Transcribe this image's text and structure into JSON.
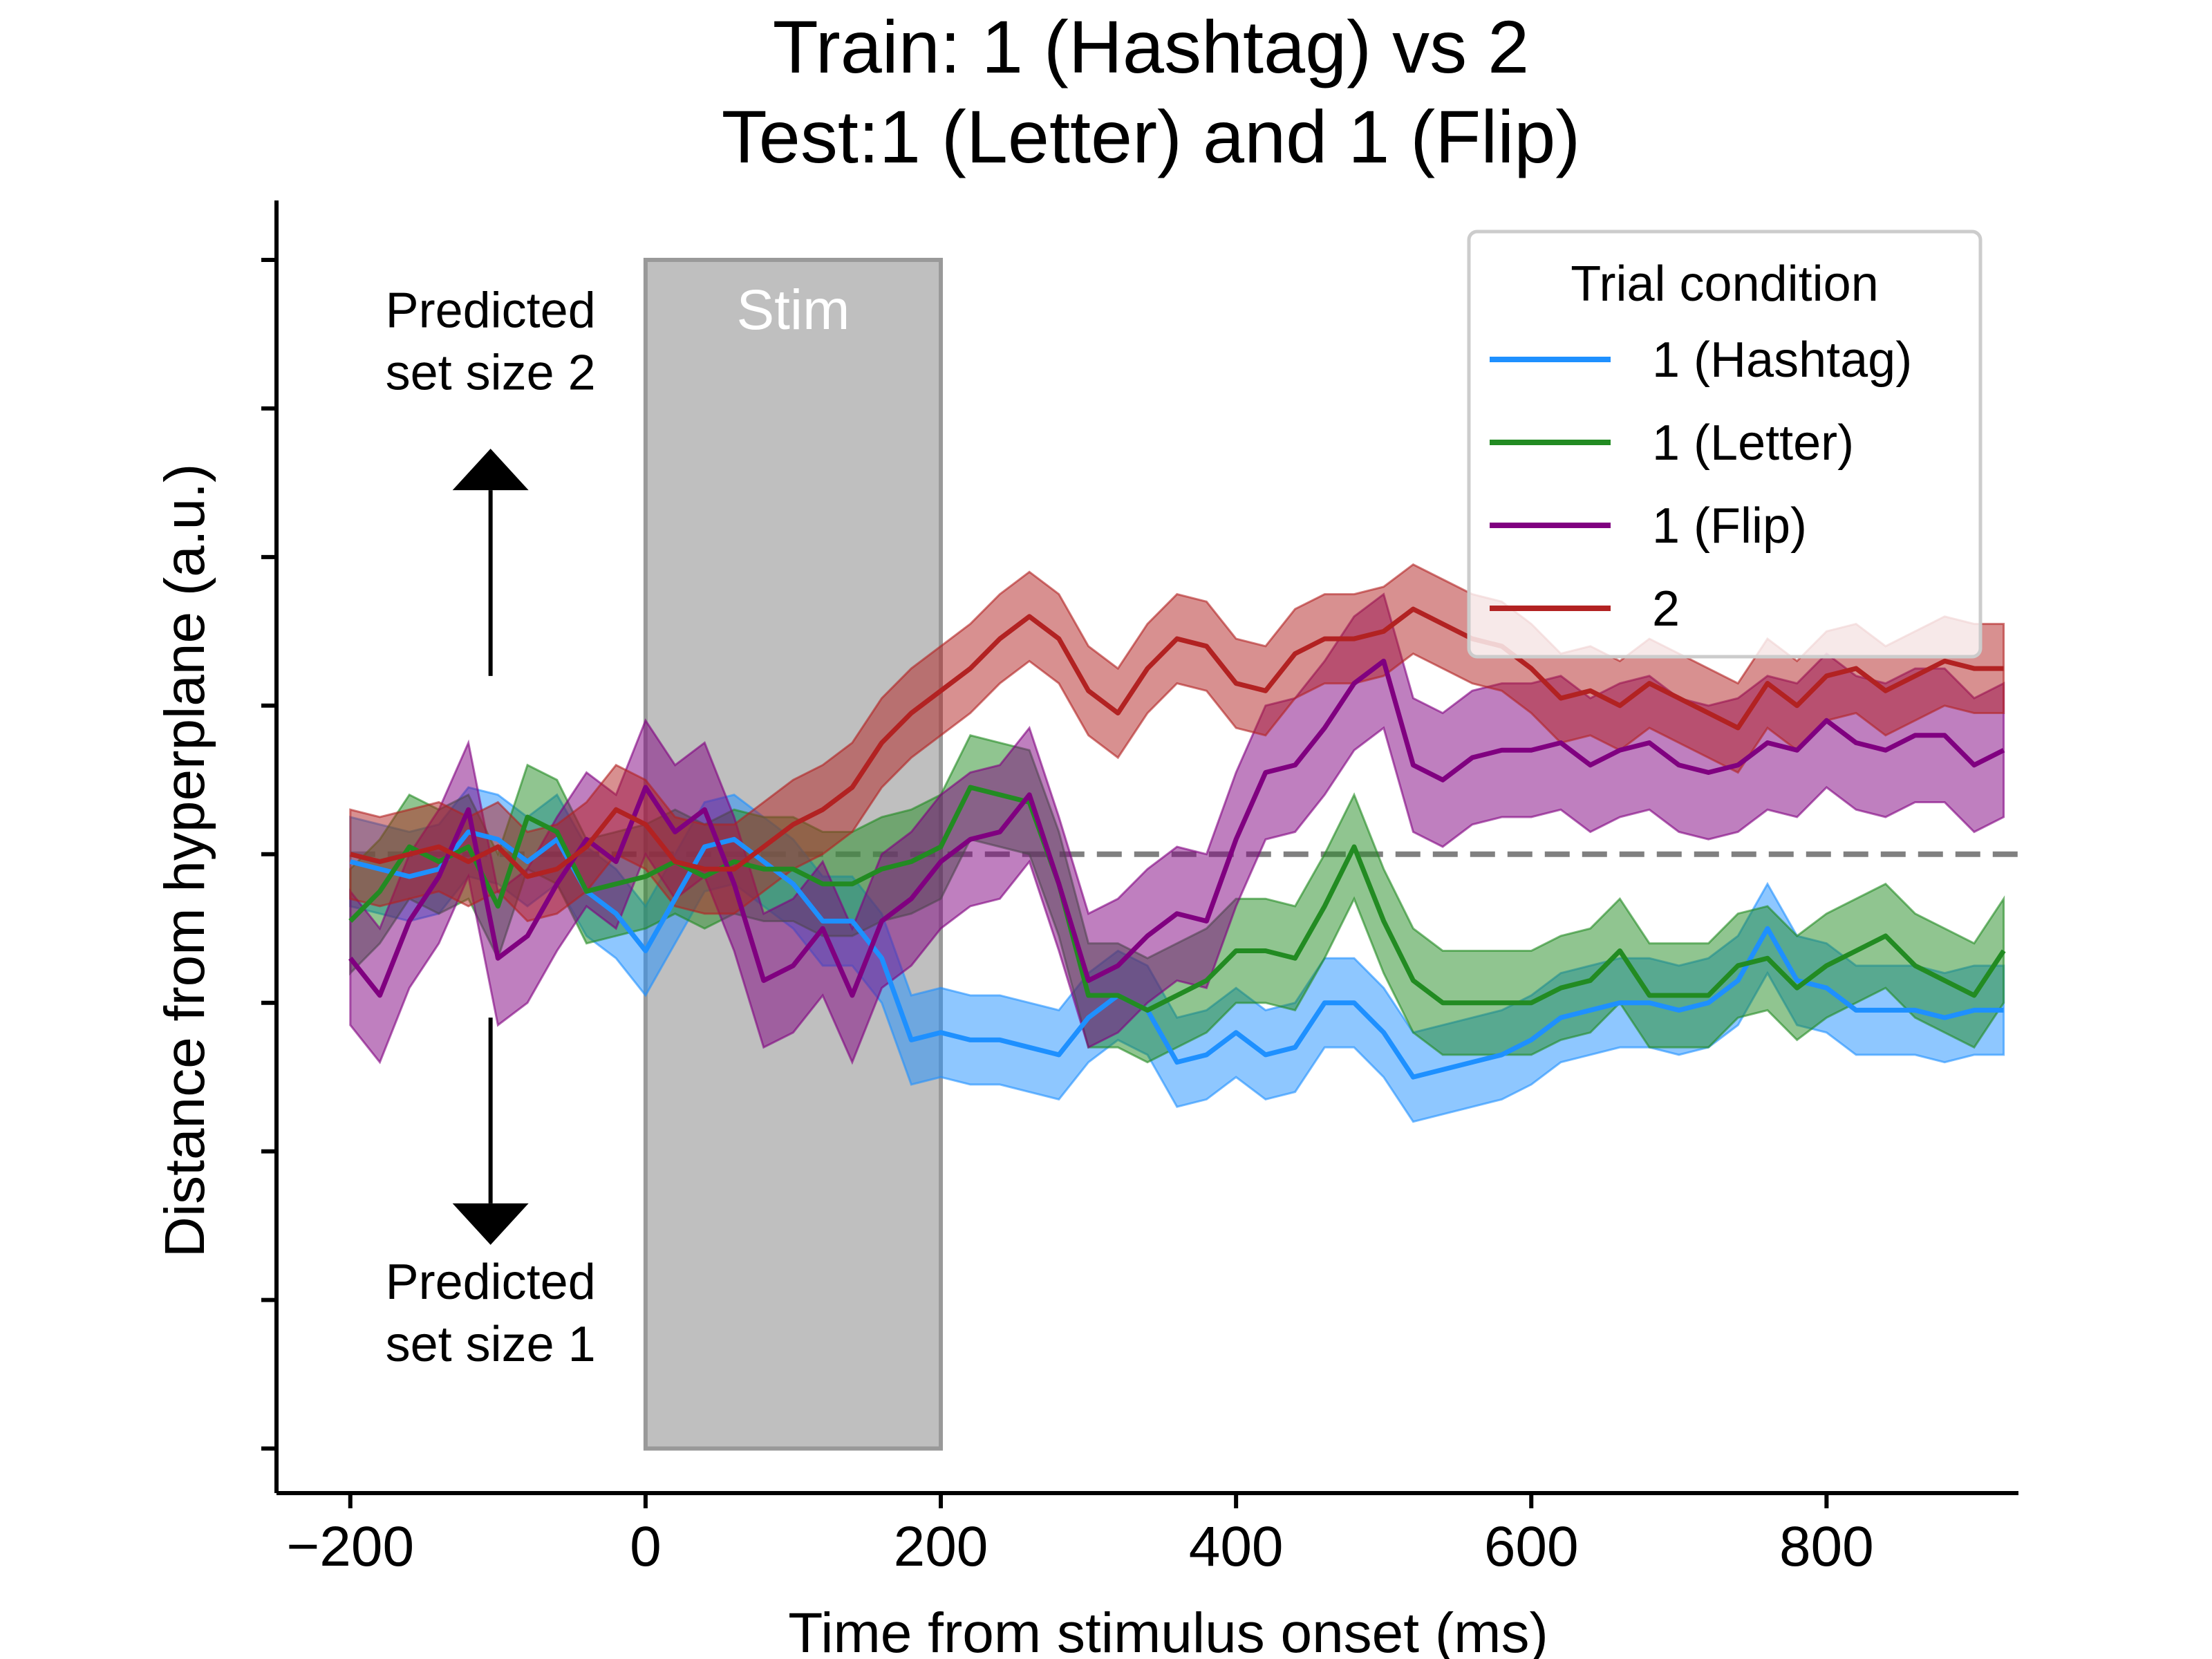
{
  "chart_data": {
    "type": "line",
    "title": [
      "Train: 1 (Hashtag) vs 2",
      "Test:1 (Letter) and 1 (Flip)"
    ],
    "xlabel": "Time from stimulus onset (ms)",
    "ylabel": "Distance from hyperplane (a.u.)",
    "xlim": [
      -250,
      930
    ],
    "ylim": [
      -4.3,
      4.4
    ],
    "xticks": [
      -200,
      0,
      200,
      400,
      600,
      800
    ],
    "xtick_labels": [
      "−200",
      "0",
      "200",
      "400",
      "600",
      "800"
    ],
    "yticks": [
      -4,
      -3,
      -2,
      -1,
      0,
      1,
      2,
      3,
      4
    ],
    "y_tick_labels_shown": false,
    "grid": false,
    "reference_line": {
      "y": 0,
      "style": "dashed",
      "color": "#808080"
    },
    "shaded_region": {
      "label": "Stim",
      "x": [
        0,
        200
      ],
      "y": [
        -4,
        4
      ],
      "color": "#bfbfbf"
    },
    "annotations": [
      {
        "text": [
          "Predicted",
          "set size 2"
        ],
        "arrow": "up",
        "x": -105,
        "arrow_y": [
          1.2,
          2.45
        ],
        "text_y": 3.5
      },
      {
        "text": [
          "Predicted",
          "set size 1"
        ],
        "arrow": "down",
        "x": -105,
        "arrow_y": [
          -1.1,
          -2.35
        ],
        "text_y": -2.9
      }
    ],
    "legend": {
      "title": "Trial condition",
      "placement": "top-right"
    },
    "x": [
      -200,
      -180,
      -160,
      -140,
      -120,
      -100,
      -80,
      -60,
      -40,
      -20,
      0,
      20,
      40,
      60,
      80,
      100,
      120,
      140,
      160,
      180,
      200,
      220,
      240,
      260,
      280,
      300,
      320,
      340,
      360,
      380,
      400,
      420,
      440,
      460,
      480,
      500,
      520,
      540,
      560,
      580,
      600,
      620,
      640,
      660,
      680,
      700,
      720,
      740,
      760,
      780,
      800,
      820,
      840,
      860,
      880,
      900,
      920
    ],
    "series": [
      {
        "name": "1 (Hashtag)",
        "color": "#1e90ff",
        "values": [
          -0.05,
          -0.1,
          -0.15,
          -0.1,
          0.15,
          0.1,
          -0.05,
          0.1,
          -0.25,
          -0.4,
          -0.65,
          -0.3,
          0.05,
          0.1,
          -0.05,
          -0.2,
          -0.45,
          -0.45,
          -0.7,
          -1.25,
          -1.2,
          -1.25,
          -1.25,
          -1.3,
          -1.35,
          -1.1,
          -0.95,
          -1.05,
          -1.4,
          -1.35,
          -1.2,
          -1.35,
          -1.3,
          -1.0,
          -1.0,
          -1.2,
          -1.5,
          -1.45,
          -1.4,
          -1.35,
          -1.25,
          -1.1,
          -1.05,
          -1.0,
          -1.0,
          -1.05,
          -1.0,
          -0.85,
          -0.5,
          -0.85,
          -0.9,
          -1.05,
          -1.05,
          -1.05,
          -1.1,
          -1.05,
          -1.05
        ],
        "band_halfwidth": 0.3
      },
      {
        "name": "1 (Letter)",
        "color": "#228b22",
        "values": [
          -0.45,
          -0.25,
          0.05,
          -0.05,
          0.05,
          -0.35,
          0.25,
          0.15,
          -0.25,
          -0.2,
          -0.15,
          -0.05,
          -0.15,
          -0.05,
          -0.1,
          -0.1,
          -0.2,
          -0.2,
          -0.1,
          -0.05,
          0.05,
          0.45,
          0.4,
          0.35,
          -0.2,
          -0.95,
          -0.95,
          -1.05,
          -0.95,
          -0.85,
          -0.65,
          -0.65,
          -0.7,
          -0.35,
          0.05,
          -0.45,
          -0.85,
          -1.0,
          -1.0,
          -1.0,
          -1.0,
          -0.9,
          -0.85,
          -0.65,
          -0.95,
          -0.95,
          -0.95,
          -0.75,
          -0.7,
          -0.9,
          -0.75,
          -0.65,
          -0.55,
          -0.75,
          -0.85,
          -0.95,
          -0.65
        ],
        "band_halfwidth": 0.35
      },
      {
        "name": "1 (Flip)",
        "color": "#800080",
        "values": [
          -0.7,
          -0.95,
          -0.45,
          -0.15,
          0.3,
          -0.7,
          -0.55,
          -0.2,
          0.1,
          -0.05,
          0.45,
          0.15,
          0.3,
          -0.2,
          -0.85,
          -0.75,
          -0.5,
          -0.95,
          -0.45,
          -0.3,
          -0.05,
          0.1,
          0.15,
          0.4,
          -0.2,
          -0.85,
          -0.75,
          -0.55,
          -0.4,
          -0.45,
          0.1,
          0.55,
          0.6,
          0.85,
          1.15,
          1.3,
          0.6,
          0.5,
          0.65,
          0.7,
          0.7,
          0.75,
          0.6,
          0.7,
          0.75,
          0.6,
          0.55,
          0.6,
          0.75,
          0.7,
          0.9,
          0.75,
          0.7,
          0.8,
          0.8,
          0.6,
          0.7
        ],
        "band_halfwidth": 0.45
      },
      {
        "name": "2",
        "color": "#b22222",
        "values": [
          0.0,
          -0.05,
          0.0,
          0.05,
          -0.05,
          0.05,
          -0.15,
          -0.1,
          0.05,
          0.3,
          0.2,
          -0.05,
          -0.1,
          -0.1,
          0.05,
          0.2,
          0.3,
          0.45,
          0.75,
          0.95,
          1.1,
          1.25,
          1.45,
          1.6,
          1.45,
          1.1,
          0.95,
          1.25,
          1.45,
          1.4,
          1.15,
          1.1,
          1.35,
          1.45,
          1.45,
          1.5,
          1.65,
          1.55,
          1.45,
          1.4,
          1.25,
          1.05,
          1.1,
          1.0,
          1.15,
          1.05,
          0.95,
          0.85,
          1.15,
          1.0,
          1.2,
          1.25,
          1.1,
          1.2,
          1.3,
          1.25,
          1.25
        ],
        "band_halfwidth": 0.3
      }
    ]
  }
}
